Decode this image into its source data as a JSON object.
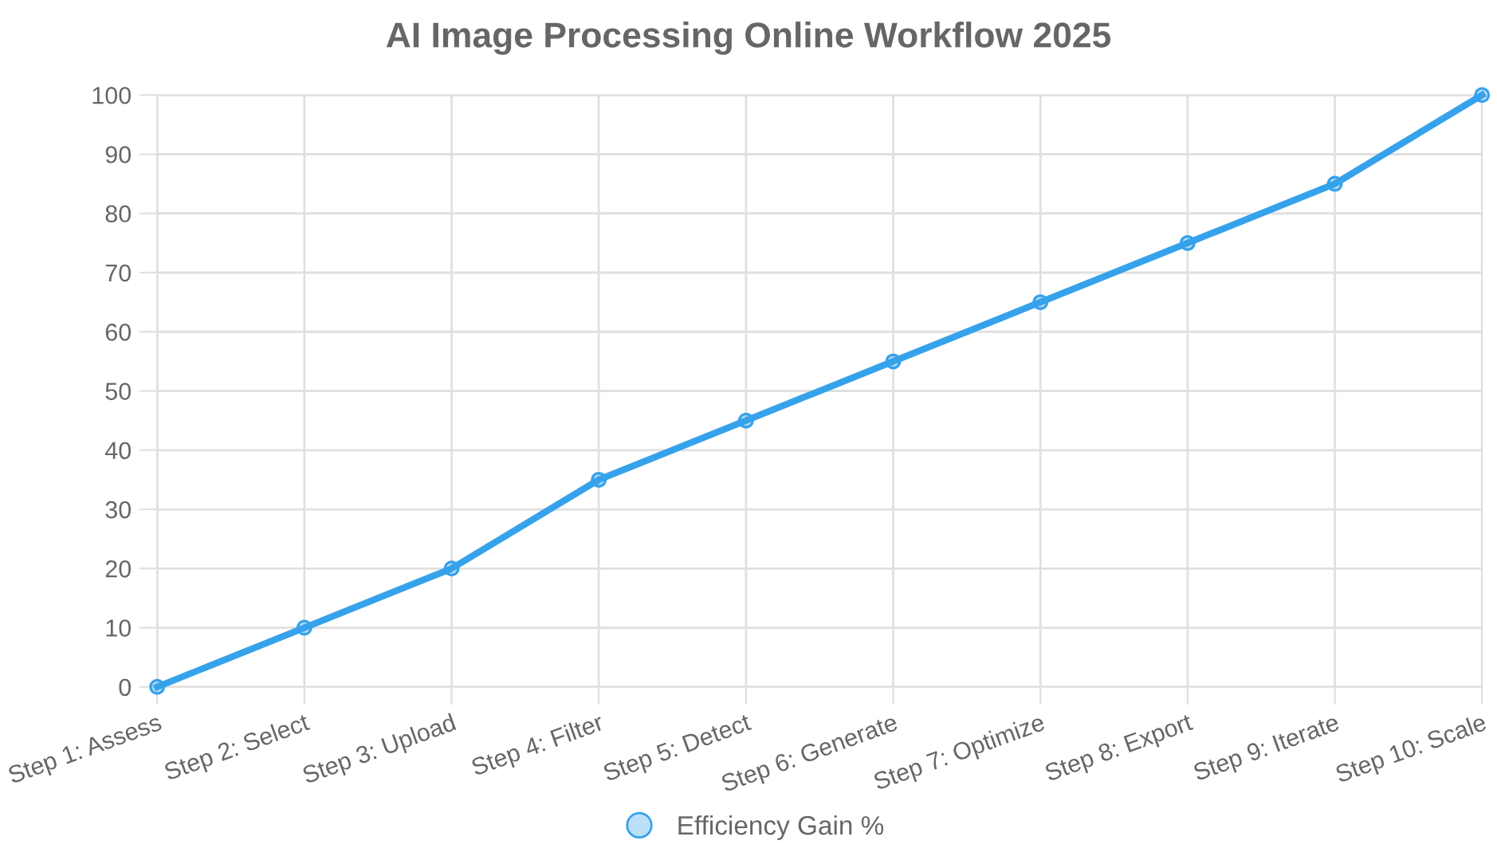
{
  "chart_data": {
    "type": "line",
    "title": "AI Image Processing Online Workflow 2025",
    "categories": [
      "Step 1: Assess",
      "Step 2: Select",
      "Step 3: Upload",
      "Step 4: Filter",
      "Step 5: Detect",
      "Step 6: Generate",
      "Step 7: Optimize",
      "Step 8: Export",
      "Step 9: Iterate",
      "Step 10: Scale"
    ],
    "series": [
      {
        "name": "Efficiency Gain %",
        "color": "#36a2eb",
        "values": [
          0,
          10,
          20,
          35,
          45,
          55,
          65,
          75,
          85,
          100
        ]
      }
    ],
    "ylim": [
      0,
      100
    ],
    "yticks": [
      0,
      10,
      20,
      30,
      40,
      50,
      60,
      70,
      80,
      90,
      100
    ],
    "grid": true,
    "legend": "bottom",
    "marker": "circle",
    "line_style": "solid"
  }
}
